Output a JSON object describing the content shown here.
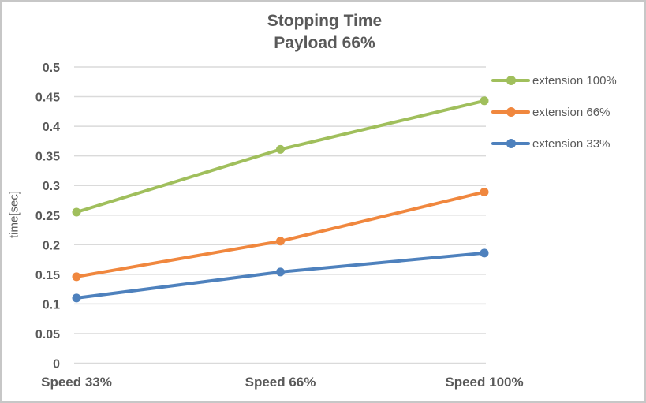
{
  "frame": {
    "background": "#ffffff",
    "border_color": "#c7c7c7",
    "text_color": "#595959",
    "gridline_color": "#dadada"
  },
  "chart_data": {
    "type": "line",
    "title": "Stopping Time",
    "subtitle": "Payload 66%",
    "ylabel": "time[sec]",
    "xlabel": "",
    "categories": [
      "Speed 33%",
      "Speed 66%",
      "Speed 100%"
    ],
    "series": [
      {
        "name": "extension 100%",
        "color": "#a0bf5c",
        "values": [
          0.255,
          0.361,
          0.443
        ]
      },
      {
        "name": "extension 66%",
        "color": "#f0873e",
        "values": [
          0.146,
          0.206,
          0.289
        ]
      },
      {
        "name": "extension 33%",
        "color": "#4e81bd",
        "values": [
          0.11,
          0.154,
          0.186
        ]
      }
    ],
    "ylim": [
      0,
      0.5
    ],
    "ytick_step": 0.05,
    "ytick_labels": [
      "0",
      "0.05",
      "0.1",
      "0.15",
      "0.2",
      "0.25",
      "0.3",
      "0.35",
      "0.4",
      "0.45",
      "0.5"
    ],
    "grid": "horizontal-only",
    "legend_position": "right",
    "marker": "circle"
  }
}
